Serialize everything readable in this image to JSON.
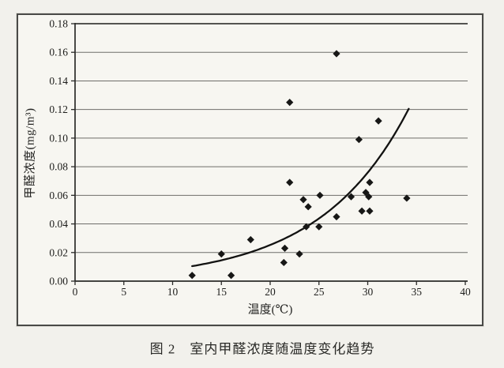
{
  "figure": {
    "caption": "图 2　室内甲醛浓度随温度变化趋势"
  },
  "chart_data": {
    "type": "scatter",
    "title": "",
    "xlabel": "温度(℃)",
    "ylabel": "甲醛浓度(mg/m³)",
    "xlim": [
      0,
      40
    ],
    "ylim": [
      0,
      0.18
    ],
    "x_ticks": [
      0,
      5,
      10,
      15,
      20,
      25,
      30,
      35,
      40
    ],
    "y_ticks": [
      0,
      0.02,
      0.04,
      0.06,
      0.08,
      0.1,
      0.12,
      0.14,
      0.16,
      0.18
    ],
    "y_tick_decimals": 2,
    "grid": "horizontal",
    "legend": "none",
    "marker": "diamond",
    "points": [
      [
        12,
        0.004
      ],
      [
        15,
        0.019
      ],
      [
        16,
        0.004
      ],
      [
        18,
        0.029
      ],
      [
        21.4,
        0.013
      ],
      [
        21.5,
        0.023
      ],
      [
        22,
        0.069
      ],
      [
        22,
        0.125
      ],
      [
        23,
        0.019
      ],
      [
        23.4,
        0.057
      ],
      [
        23.7,
        0.038
      ],
      [
        23.9,
        0.052
      ],
      [
        25,
        0.038
      ],
      [
        25.1,
        0.06
      ],
      [
        26.8,
        0.045
      ],
      [
        26.8,
        0.159
      ],
      [
        28.3,
        0.059
      ],
      [
        29.1,
        0.099
      ],
      [
        29.4,
        0.049
      ],
      [
        29.8,
        0.062
      ],
      [
        30.1,
        0.059
      ],
      [
        30.2,
        0.049
      ],
      [
        30.2,
        0.069
      ],
      [
        31.1,
        0.112
      ],
      [
        34,
        0.058
      ]
    ],
    "trendline": {
      "type": "exponential",
      "equation": "y = 0.0028·e^(0.11x)",
      "a": 0.0028,
      "b": 0.11,
      "x_start": 12,
      "x_end": 34.2
    },
    "colors": {
      "marker": "#171716",
      "trendline": "#121211",
      "gridline": "#6f6e6a",
      "axis": "#2b2b29",
      "tick_label": "#1d1d1b",
      "frame_border": "#4a4a47",
      "paper": "#f2f1ec",
      "figure_bg": "#f7f6f1"
    }
  }
}
